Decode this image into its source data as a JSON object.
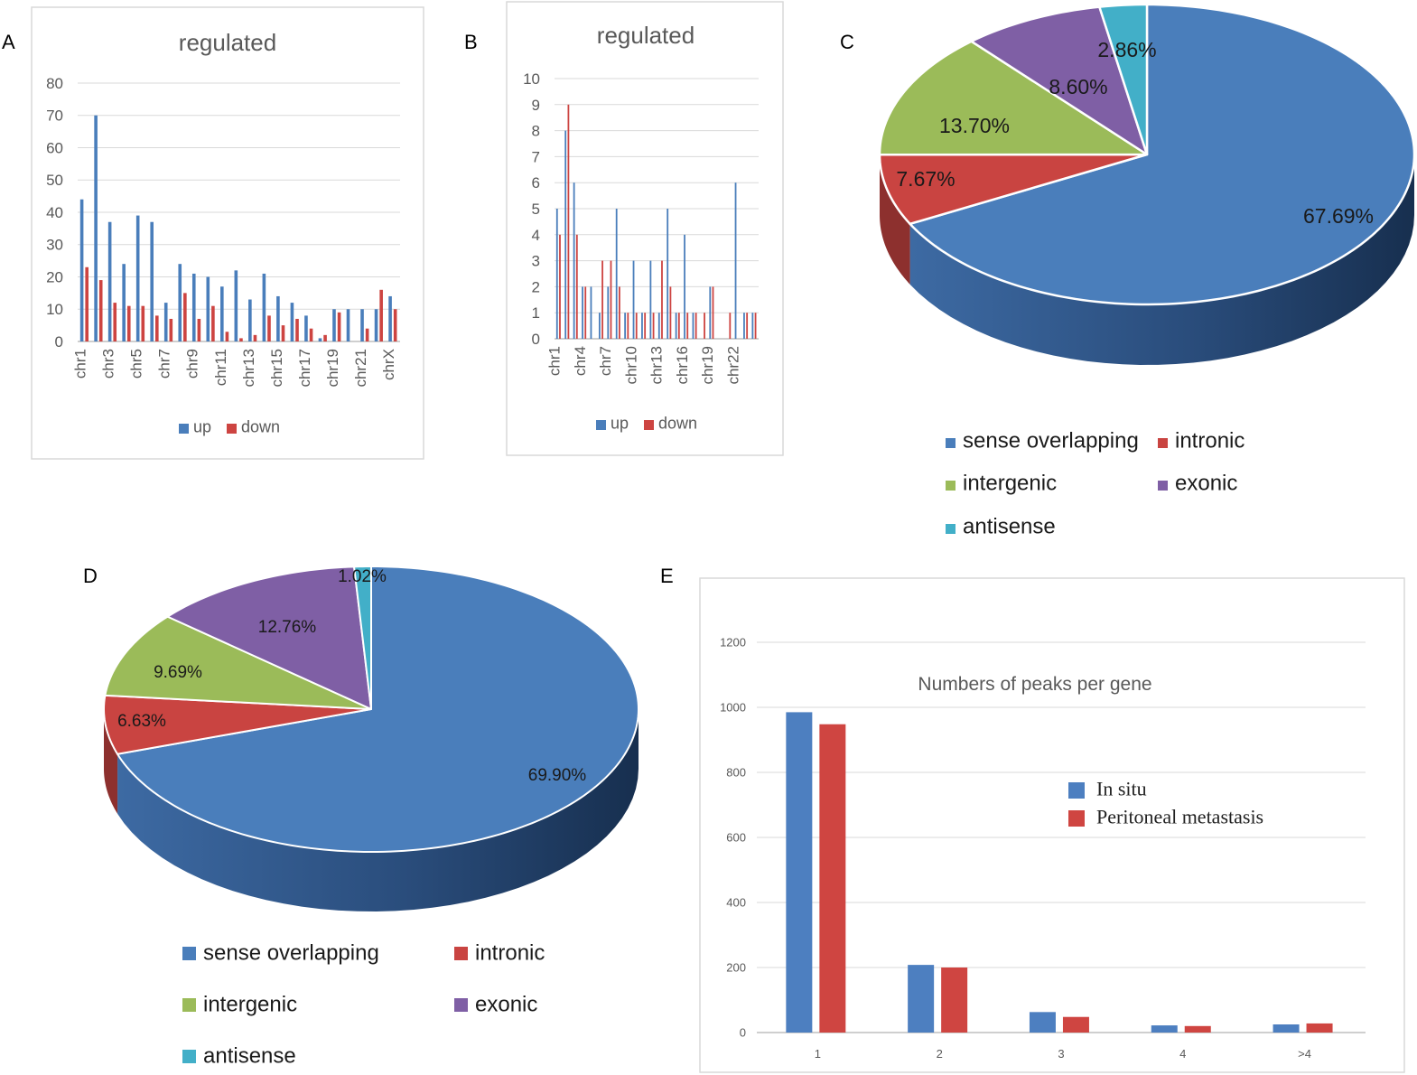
{
  "panel_letters": [
    "A",
    "B",
    "C",
    "D",
    "E"
  ],
  "colors": {
    "up": "#4a7ebb",
    "down": "#cd4441",
    "sense": "#4a7ebb",
    "intronic": "#c94441",
    "intergenic": "#9bbb59",
    "exonic": "#7f5fa5",
    "antisense": "#42afc8",
    "grid": "#d9d9d9",
    "axis": "#bfbfbf",
    "text": "#595959",
    "frame": "#d9d9d9"
  },
  "chart_data": [
    {
      "panel": "A",
      "type": "bar",
      "title": "regulated",
      "categories": [
        "chr1",
        "chr2",
        "chr3",
        "chr4",
        "chr5",
        "chr6",
        "chr7",
        "chr8",
        "chr9",
        "chr10",
        "chr11",
        "chr12",
        "chr13",
        "chr14",
        "chr15",
        "chr16",
        "chr17",
        "chr18",
        "chr19",
        "chr20",
        "chr21",
        "chr22",
        "chrX"
      ],
      "shown_tick_labels": [
        "chr1",
        "chr3",
        "chr5",
        "chr7",
        "chr9",
        "chr11",
        "chr13",
        "chr15",
        "chr17",
        "chr19",
        "chr21",
        "chrX"
      ],
      "series": [
        {
          "name": "up",
          "values": [
            44,
            70,
            37,
            24,
            39,
            37,
            12,
            24,
            21,
            20,
            17,
            22,
            13,
            21,
            14,
            12,
            8,
            1,
            10,
            10,
            10,
            10,
            14
          ]
        },
        {
          "name": "down",
          "values": [
            23,
            19,
            12,
            11,
            11,
            8,
            7,
            15,
            7,
            11,
            3,
            1,
            2,
            8,
            5,
            7,
            4,
            2,
            9,
            0,
            4,
            16,
            10
          ]
        }
      ],
      "yticks": [
        "0",
        "10",
        "20",
        "30",
        "40",
        "50",
        "60",
        "70",
        "80"
      ],
      "ylim": [
        0,
        80
      ],
      "legend": "bottom"
    },
    {
      "panel": "B",
      "type": "bar",
      "title": "regulated",
      "categories": [
        "chr1",
        "chr2",
        "chr3",
        "chr4",
        "chr5",
        "chr6",
        "chr7",
        "chr8",
        "chr9",
        "chr10",
        "chr11",
        "chr12",
        "chr13",
        "chr14",
        "chr15",
        "chr16",
        "chr17",
        "chr18",
        "chr19",
        "chr20",
        "chr21",
        "chr22",
        "chrX",
        "chrY"
      ],
      "shown_tick_labels": [
        "chr1",
        "chr4",
        "chr7",
        "chr10",
        "chr13",
        "chr16",
        "chr19",
        "chr22"
      ],
      "series": [
        {
          "name": "up",
          "values": [
            5,
            8,
            6,
            2,
            2,
            1,
            2,
            5,
            1,
            3,
            1,
            3,
            1,
            5,
            1,
            4,
            1,
            0,
            2,
            0,
            0,
            6,
            1,
            1
          ]
        },
        {
          "name": "down",
          "values": [
            4,
            9,
            4,
            2,
            0,
            3,
            3,
            2,
            1,
            1,
            1,
            1,
            3,
            2,
            1,
            1,
            1,
            1,
            2,
            0,
            1,
            0,
            1,
            1
          ]
        }
      ],
      "yticks": [
        "0",
        "1",
        "2",
        "3",
        "4",
        "5",
        "6",
        "7",
        "8",
        "9",
        "10"
      ],
      "ylim": [
        0,
        10
      ],
      "legend": "bottom"
    },
    {
      "panel": "C",
      "type": "pie",
      "slices": [
        {
          "name": "sense overlapping",
          "value": 67.69,
          "label": "67.69%"
        },
        {
          "name": "intronic",
          "value": 7.67,
          "label": "7.67%"
        },
        {
          "name": "intergenic",
          "value": 13.7,
          "label": "13.70%"
        },
        {
          "name": "exonic",
          "value": 8.6,
          "label": "8.60%"
        },
        {
          "name": "antisense",
          "value": 2.86,
          "label": "2.86%"
        }
      ],
      "legend": "bottom"
    },
    {
      "panel": "D",
      "type": "pie",
      "slices": [
        {
          "name": "sense overlapping",
          "value": 69.9,
          "label": "69.90%"
        },
        {
          "name": "intronic",
          "value": 6.63,
          "label": "6.63%"
        },
        {
          "name": "intergenic",
          "value": 9.69,
          "label": "9.69%"
        },
        {
          "name": "exonic",
          "value": 12.76,
          "label": "12.76%"
        },
        {
          "name": "antisense",
          "value": 1.02,
          "label": "1.02%"
        }
      ],
      "legend": "bottom"
    },
    {
      "panel": "E",
      "type": "bar",
      "title": "Numbers of peaks per gene",
      "categories": [
        "1",
        "2",
        "3",
        "4",
        ">4"
      ],
      "series": [
        {
          "name": "In situ",
          "values": [
            985,
            208,
            63,
            22,
            25
          ]
        },
        {
          "name": "Peritoneal metastasis",
          "values": [
            948,
            200,
            48,
            20,
            28
          ]
        }
      ],
      "yticks": [
        "0",
        "200",
        "400",
        "600",
        "800",
        "1000",
        "1200"
      ],
      "ylim": [
        0,
        1200
      ],
      "legend": "inside-right"
    }
  ]
}
